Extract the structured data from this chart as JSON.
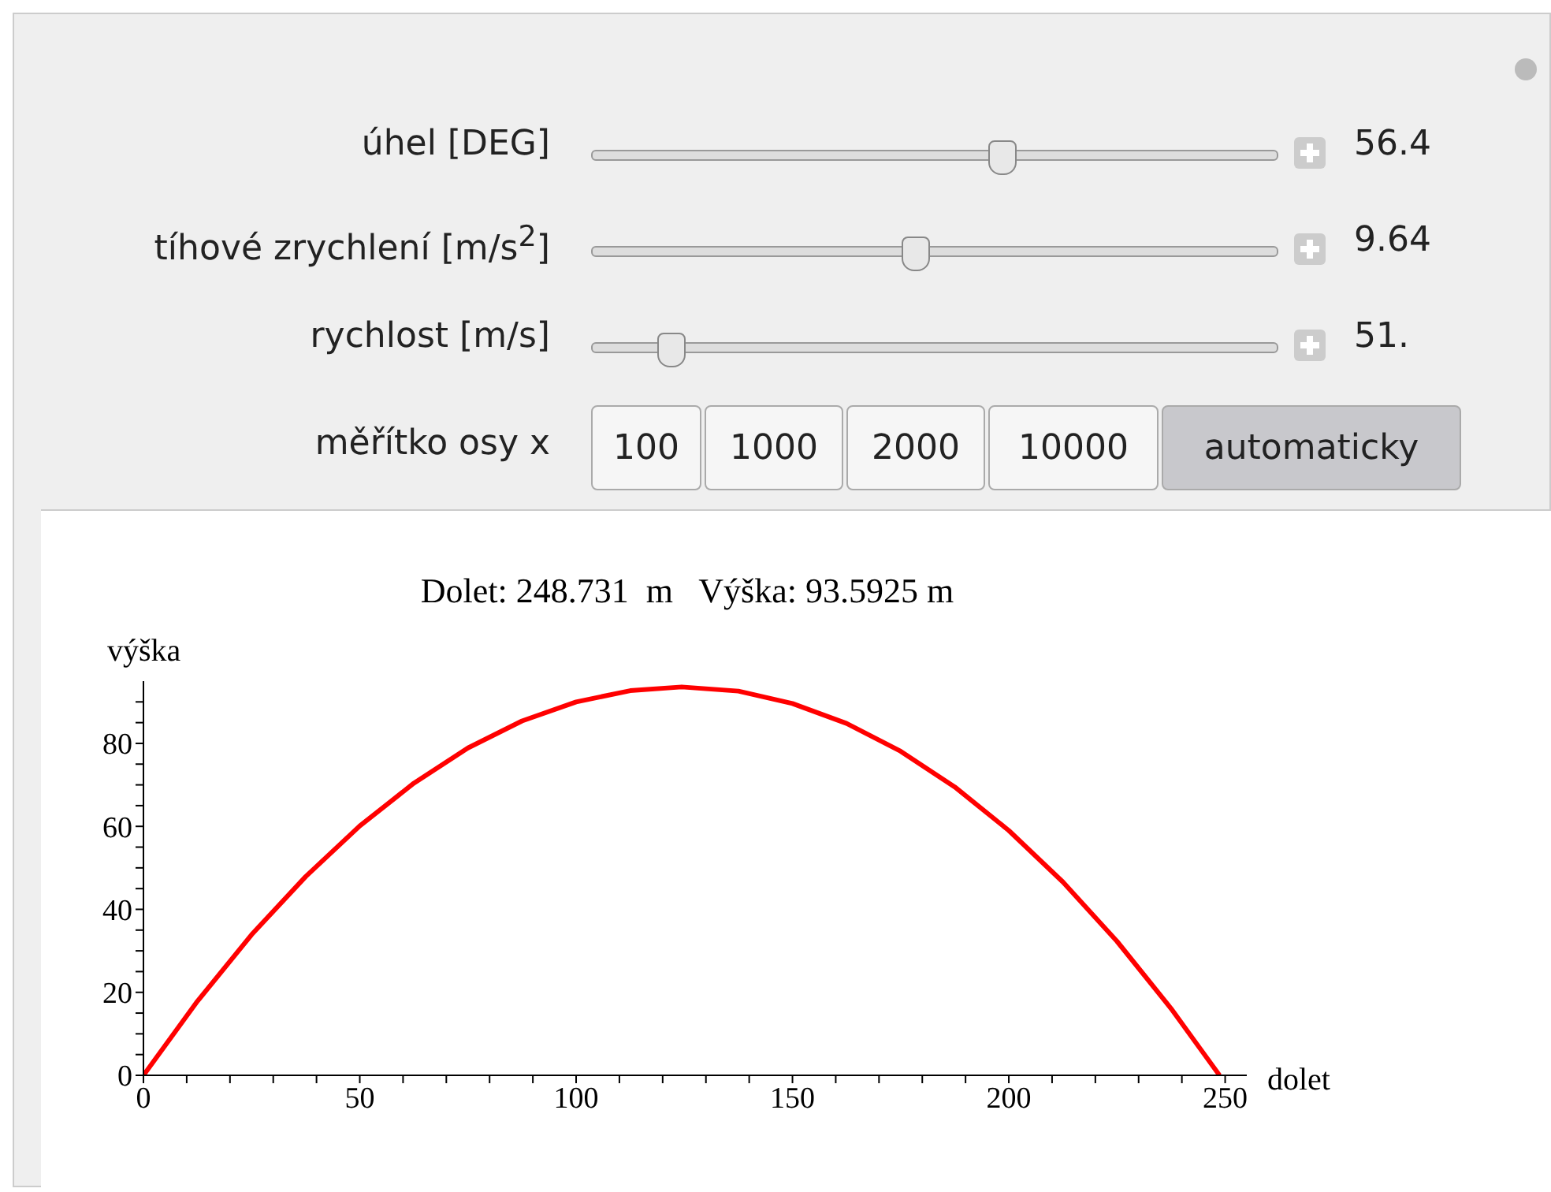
{
  "chart_data": {
    "type": "line",
    "title": "Dolet: 248.731  m   Výška: 93.5925 m",
    "xlabel": "dolet",
    "ylabel": "výška",
    "x": [
      0,
      12.5,
      25,
      37.5,
      50,
      62.5,
      75,
      87.5,
      100,
      112.5,
      124.4,
      137.5,
      150,
      162.5,
      175,
      187.5,
      200,
      212.5,
      225,
      237.5,
      248.7
    ],
    "series": [
      {
        "color": "#ff0000",
        "values": [
          0,
          17.9,
          33.9,
          47.9,
          60.1,
          70.4,
          78.9,
          85.4,
          90.0,
          92.7,
          93.6,
          92.6,
          89.6,
          84.8,
          78.1,
          69.5,
          59.0,
          46.6,
          32.3,
          16.1,
          0
        ]
      }
    ],
    "xlim": [
      0,
      255
    ],
    "ylim": [
      0,
      95
    ],
    "xticks": [
      0,
      {
        "value": 10,
        "label": null
      },
      {
        "value": 20,
        "label": null
      },
      {
        "value": 30,
        "label": null
      },
      {
        "value": 40,
        "label": null
      },
      50,
      {
        "value": 60,
        "label": null
      },
      {
        "value": 70,
        "label": null
      },
      {
        "value": 80,
        "label": null
      },
      {
        "value": 90,
        "label": null
      },
      100,
      {
        "value": 110,
        "label": null
      },
      {
        "value": 120,
        "label": null
      },
      {
        "value": 130,
        "label": null
      },
      {
        "value": 140,
        "label": null
      },
      150,
      {
        "value": 160,
        "label": null
      },
      {
        "value": 170,
        "label": null
      },
      {
        "value": 180,
        "label": null
      },
      {
        "value": 190,
        "label": null
      },
      200,
      {
        "value": 210,
        "label": null
      },
      {
        "value": 220,
        "label": null
      },
      {
        "value": 230,
        "label": null
      },
      {
        "value": 240,
        "label": null
      },
      250
    ],
    "yticks": [
      0,
      {
        "value": 5,
        "label": null
      },
      {
        "value": 10,
        "label": null
      },
      {
        "value": 15,
        "label": null
      },
      20,
      {
        "value": 25,
        "label": null
      },
      {
        "value": 30,
        "label": null
      },
      {
        "value": 35,
        "label": null
      },
      40,
      {
        "value": 45,
        "label": null
      },
      {
        "value": 50,
        "label": null
      },
      {
        "value": 55,
        "label": null
      },
      60,
      {
        "value": 65,
        "label": null
      },
      {
        "value": 70,
        "label": null
      },
      {
        "value": 75,
        "label": null
      },
      80,
      {
        "value": 85,
        "label": null
      },
      {
        "value": 90,
        "label": null
      }
    ],
    "grid": false,
    "legend": false,
    "marker": "none",
    "line_style": "solid",
    "annotations": [
      "úhel [DEG]",
      "tíhové zrychlení [m/s$^{2}$]",
      "rychlost [m/s]",
      "měřítko osy x",
      "56.4",
      "9.64",
      "51.",
      "100",
      "1000",
      "2000",
      "10000",
      "automaticky"
    ]
  }
}
